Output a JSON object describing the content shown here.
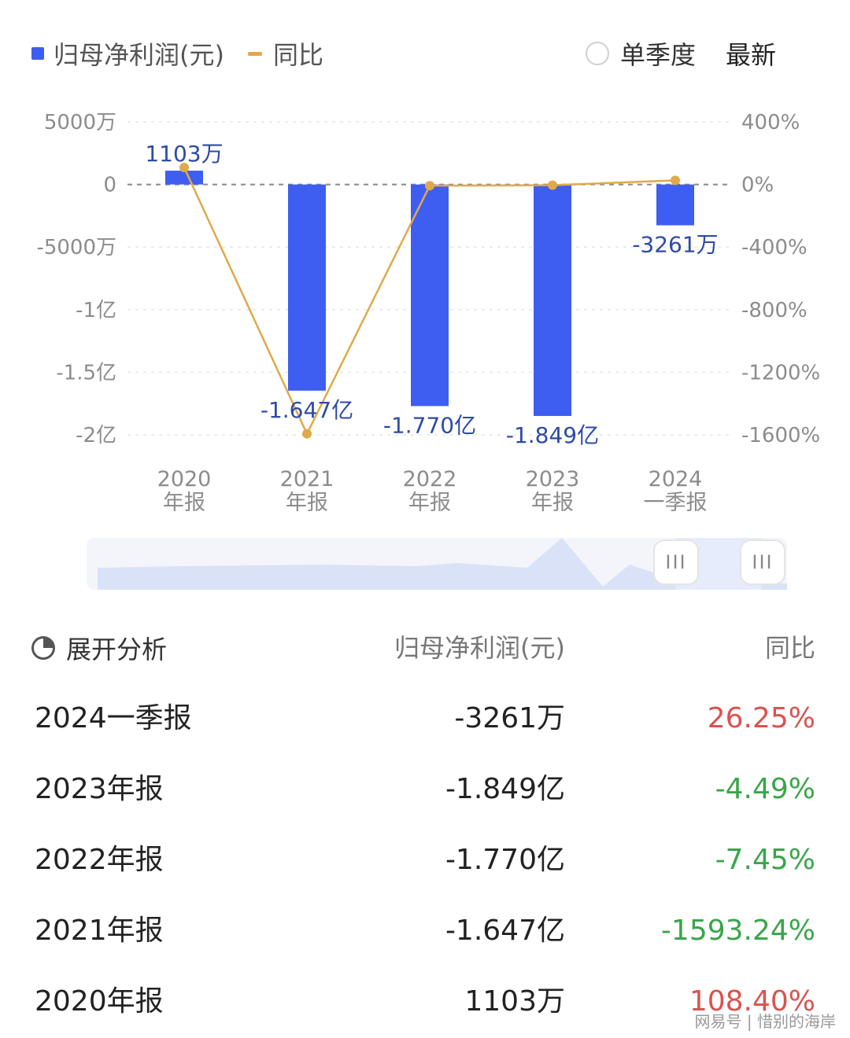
{
  "legend": {
    "bar_label": "归母净利润(元)",
    "line_label": "同比"
  },
  "toggle": {
    "label": "单季度",
    "latest": "最新"
  },
  "colors": {
    "bar": "#3d5ef0",
    "line": "#e0a94a",
    "positive": "#d9534f",
    "negative": "#3aa54a"
  },
  "chart_data": {
    "type": "bar",
    "categories": [
      [
        "2020",
        "年报"
      ],
      [
        "2021",
        "年报"
      ],
      [
        "2022",
        "年报"
      ],
      [
        "2023",
        "年报"
      ],
      [
        "2024",
        "一季报"
      ]
    ],
    "series": [
      {
        "name": "归母净利润(元)",
        "type": "bar",
        "axis": "left",
        "values": [
          11030000,
          -164700000,
          -177000000,
          -184900000,
          -32610000
        ],
        "labels": [
          "1103万",
          "-1.647亿",
          "-1.770亿",
          "-1.849亿",
          "-3261万"
        ]
      },
      {
        "name": "同比",
        "type": "line",
        "axis": "right",
        "values": [
          108.4,
          -1593.24,
          -7.45,
          -4.49,
          26.25
        ]
      }
    ],
    "left_axis": {
      "ylim": [
        -200000000,
        50000000
      ],
      "ticks": [
        50000000,
        0,
        -50000000,
        -100000000,
        -150000000,
        -200000000
      ],
      "tick_labels": [
        "5000万",
        "0",
        "-5000万",
        "-1亿",
        "-1.5亿",
        "-2亿"
      ]
    },
    "right_axis": {
      "ylim": [
        -1600,
        400
      ],
      "ticks": [
        400,
        0,
        -400,
        -800,
        -1200,
        -1600
      ],
      "tick_labels": [
        "400%",
        "0%",
        "-400%",
        "-800%",
        "-1200%",
        "-1600%"
      ]
    },
    "grid": true,
    "legend": "top-left"
  },
  "scroller": {
    "handle_glyph": "III"
  },
  "table": {
    "header": {
      "col1": "展开分析",
      "col2": "归母净利润(元)",
      "col3": "同比"
    },
    "rows": [
      {
        "period": "2024一季报",
        "value": "-3261万",
        "yoy": "26.25%",
        "sign": "pos"
      },
      {
        "period": "2023年报",
        "value": "-1.849亿",
        "yoy": "-4.49%",
        "sign": "neg"
      },
      {
        "period": "2022年报",
        "value": "-1.770亿",
        "yoy": "-7.45%",
        "sign": "neg"
      },
      {
        "period": "2021年报",
        "value": "-1.647亿",
        "yoy": "-1593.24%",
        "sign": "neg"
      },
      {
        "period": "2020年报",
        "value": "1103万",
        "yoy": "108.40%",
        "sign": "pos"
      }
    ]
  },
  "watermark": "网易号 | 惜别的海岸"
}
